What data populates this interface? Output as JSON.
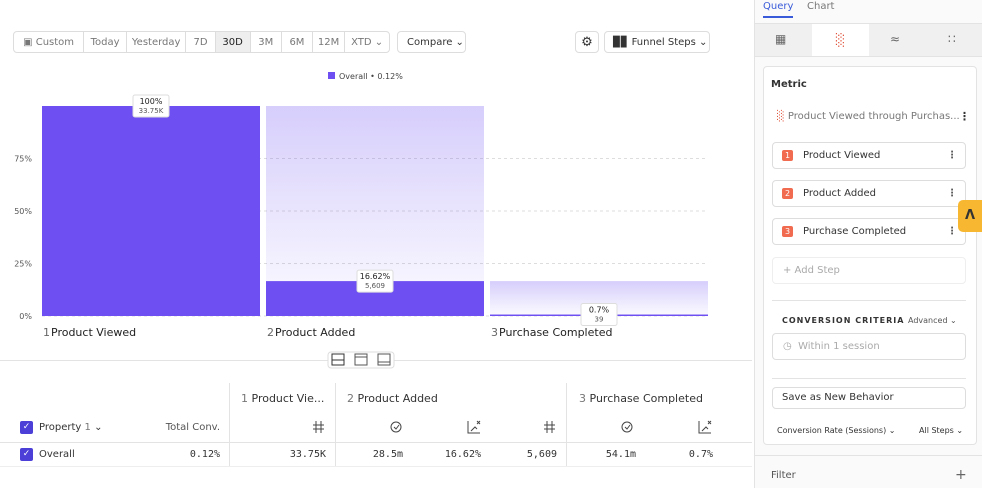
{
  "toolbar": {
    "ranges": [
      "Custom",
      "Today",
      "Yesterday",
      "7D",
      "30D",
      "3M",
      "6M",
      "12M",
      "XTD"
    ],
    "selected": "30D",
    "compare": "Compare",
    "view": "Funnel Steps"
  },
  "chart_data": {
    "type": "bar",
    "categories": [
      "Product Viewed",
      "Product Added",
      "Purchase Completed"
    ],
    "steps": [
      "1",
      "2",
      "3"
    ],
    "series": [
      {
        "name": "Overall • 0.12%",
        "color": "#6e50f2",
        "values": [
          100,
          16.62,
          0.7
        ],
        "value_labels": [
          "100%",
          "16.62%",
          "0.7%"
        ],
        "count_labels": [
          "33.75K",
          "5,609",
          "39"
        ]
      }
    ],
    "ylim": [
      0,
      100
    ],
    "yticks": [
      {
        "value": 0,
        "label": "0%"
      },
      {
        "value": 25,
        "label": "25%"
      },
      {
        "value": 50,
        "label": "50%"
      },
      {
        "value": 75,
        "label": "75%"
      }
    ],
    "grid": true
  },
  "table": {
    "property_label": "Property",
    "property_count": "1",
    "total_conv": "Total Conv.",
    "steps": [
      {
        "number": "1",
        "name": "Product Vie..."
      },
      {
        "number": "2",
        "name": "Product Added"
      },
      {
        "number": "3",
        "name": "Purchase Completed"
      }
    ],
    "rows": [
      [
        "Overall",
        "0.12%",
        "33.75K",
        "28.5m",
        "16.62%",
        "5,609",
        "54.1m",
        "0.7%"
      ]
    ]
  },
  "sidebar": {
    "tabs": [
      "Query",
      "Chart"
    ],
    "metric_title": "Metric",
    "metric_name": "Product Viewed through Purchas...",
    "steps": [
      {
        "number": "1",
        "name": "Product Viewed"
      },
      {
        "number": "2",
        "name": "Product Added"
      },
      {
        "number": "3",
        "name": "Purchase Completed"
      }
    ],
    "add_step": "+ Add Step",
    "criteria_title": "CONVERSION CRITERIA",
    "advanced": "Advanced",
    "within": "Within 1 session",
    "save": "Save as New Behavior",
    "rate": "Conversion Rate (Sessions)",
    "all_steps": "All Steps",
    "filter": "Filter",
    "filter_add": "+"
  }
}
